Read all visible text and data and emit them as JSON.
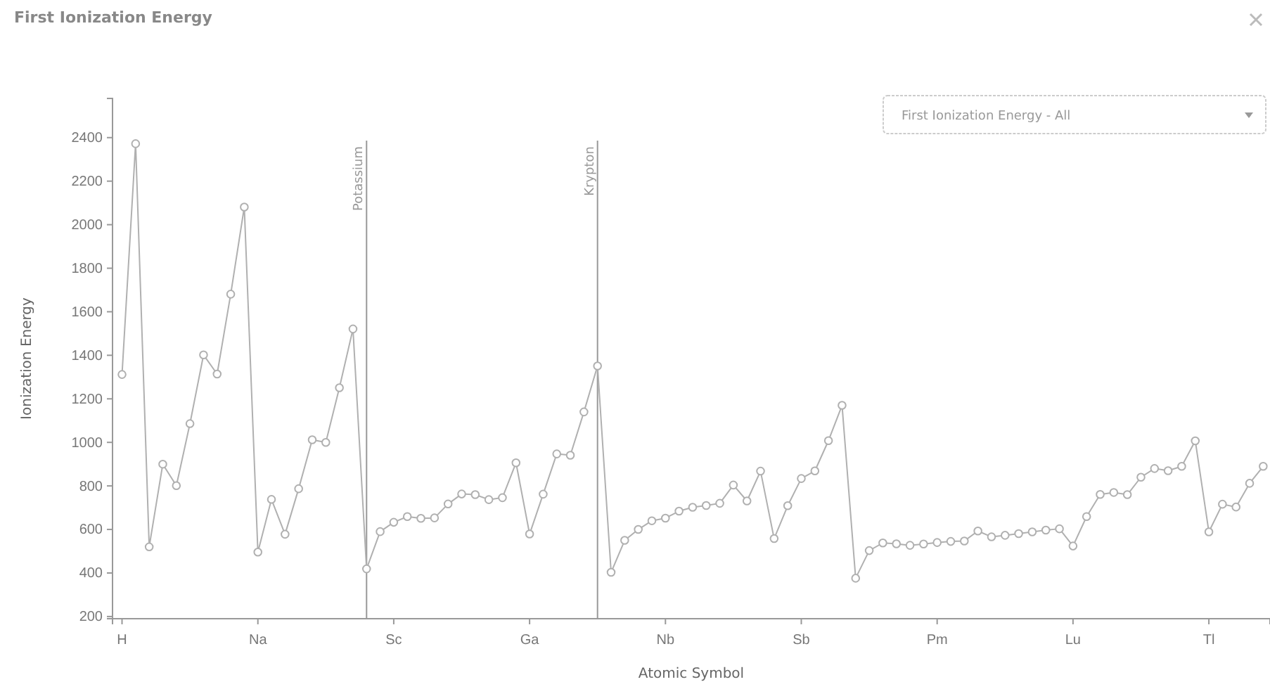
{
  "chart_data": {
    "type": "line",
    "title": "First Ionization Energy",
    "xlabel": "Atomic Symbol",
    "ylabel": "Ionization Energy",
    "categories": [
      "H",
      null,
      null,
      null,
      null,
      null,
      null,
      null,
      null,
      null,
      "Na",
      null,
      null,
      null,
      null,
      null,
      null,
      null,
      null,
      null,
      "Sc",
      null,
      null,
      null,
      null,
      null,
      null,
      null,
      null,
      null,
      "Ga",
      null,
      null,
      null,
      null,
      null,
      null,
      null,
      null,
      null,
      "Nb",
      null,
      null,
      null,
      null,
      null,
      null,
      null,
      null,
      null,
      "Sb",
      null,
      null,
      null,
      null,
      null,
      null,
      null,
      null,
      null,
      "Pm",
      null,
      null,
      null,
      null,
      null,
      null,
      null,
      null,
      null,
      "Lu",
      null,
      null,
      null,
      null,
      null,
      null,
      null,
      null,
      null,
      "Tl",
      null,
      null,
      null,
      null
    ],
    "series": [
      {
        "color": "#b0b0b0",
        "values": [
          1312,
          2372,
          520,
          900,
          801,
          1086,
          1402,
          1314,
          1681,
          2081,
          496,
          738,
          578,
          787,
          1012,
          1000,
          1251,
          1521,
          419,
          590,
          633,
          659,
          651,
          653,
          717,
          763,
          760,
          737,
          746,
          906,
          579,
          762,
          947,
          941,
          1140,
          1351,
          403,
          550,
          600,
          640,
          652,
          684,
          702,
          710,
          720,
          804,
          731,
          868,
          558,
          709,
          834,
          869,
          1008,
          1170,
          376,
          503,
          538,
          534,
          527,
          533,
          540,
          545,
          547,
          593,
          566,
          573,
          581,
          589,
          597,
          603,
          524,
          659,
          761,
          770,
          760,
          840,
          880,
          870,
          890,
          1007,
          589,
          716,
          703,
          812,
          890
        ]
      }
    ],
    "ylim": [
      190,
      2580
    ],
    "yticks": [
      200,
      400,
      600,
      800,
      1000,
      1200,
      1400,
      1600,
      1800,
      2000,
      2200,
      2400
    ],
    "marker": "circle",
    "line_style": "solid",
    "annotations": [
      "First Ionization Energy - All",
      "Potassium",
      "Krypton"
    ]
  }
}
